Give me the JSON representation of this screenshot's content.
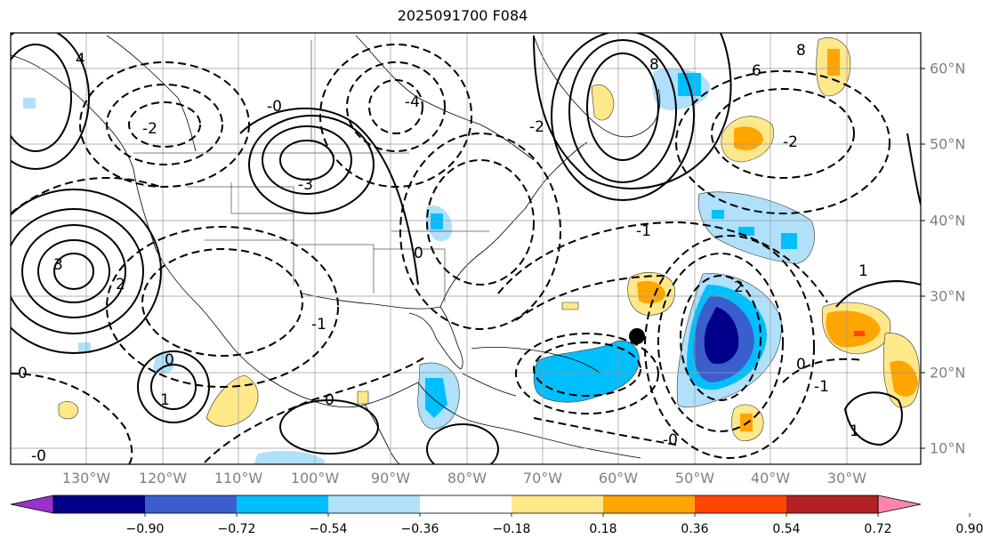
{
  "title": "2025091700 F084",
  "lon_labels": [
    "130°W",
    "120°W",
    "110°W",
    "100°W",
    "90°W",
    "80°W",
    "70°W",
    "60°W",
    "50°W",
    "40°W",
    "30°W"
  ],
  "lat_labels": [
    "60°N",
    "50°N",
    "40°N",
    "30°N",
    "20°N",
    "10°N"
  ],
  "colorbar": {
    "ticks": [
      "−0.90",
      "−0.72",
      "−0.54",
      "−0.36",
      "−0.18",
      "0.18",
      "0.36",
      "0.54",
      "0.72",
      "0.90"
    ],
    "colors": [
      "#9932cc",
      "#00008b",
      "#3a5fcd",
      "#00bfff",
      "#b0e0fa",
      "#ffffff",
      "#ffe88a",
      "#ffa500",
      "#ff4500",
      "#b22222",
      "#ff85b0"
    ]
  },
  "contour_labels": [
    "0",
    "1",
    "2",
    "3",
    "4",
    "-0",
    "-1",
    "-2",
    "-3",
    "-4",
    "8",
    "6"
  ],
  "marker": "storm-center"
}
